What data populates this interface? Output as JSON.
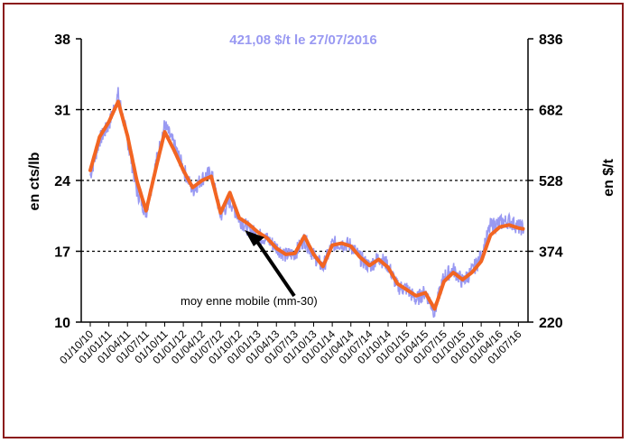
{
  "chart_data": {
    "type": "line",
    "headline": "421,08 $/t  le 27/07/2016",
    "ylabel_left": "en cts/lb",
    "ylabel_right": "en $/t",
    "ylim_left": [
      10,
      38
    ],
    "ylim_right": [
      220,
      836
    ],
    "yticks_left": [
      "10",
      "17",
      "24",
      "31",
      "38"
    ],
    "yticks_right": [
      "220",
      "374",
      "528",
      "682",
      "836"
    ],
    "grid": "horizontal dashed",
    "x_labels": [
      "01/10/10",
      "01/01/11",
      "01/04/11",
      "01/07/11",
      "01/10/11",
      "01/01/12",
      "01/04/12",
      "01/07/12",
      "01/10/12",
      "01/01/13",
      "01/04/13",
      "01/07/13",
      "01/10/13",
      "01/01/14",
      "01/04/14",
      "01/07/14",
      "01/10/14",
      "01/01/15",
      "01/04/15",
      "01/07/15",
      "01/10/15",
      "01/01/16",
      "01/04/16",
      "01/07/16"
    ],
    "annotation": "moy enne mobile (mm-30)",
    "colors": {
      "daily": "#9999f2",
      "moving_average": "#f26522",
      "frame": "#8b1a1a"
    },
    "series": [
      {
        "name": "",
        "x_index": [
          0,
          0.5,
          1,
          1.5,
          2,
          2.5,
          3,
          3.5,
          4,
          4.5,
          5,
          5.5,
          6,
          6.5,
          7,
          7.5,
          8,
          8.5,
          9,
          9.5,
          10,
          10.5,
          11,
          11.5,
          12,
          12.5,
          13,
          13.5,
          14,
          14.5,
          15,
          15.5,
          16,
          16.5,
          17,
          17.5,
          18,
          18.5,
          19,
          19.5,
          20,
          20.5,
          21,
          21.5,
          22,
          22.5,
          23,
          23.3
        ],
        "values": [
          24.5,
          28,
          29.5,
          32.5,
          28,
          23,
          20.8,
          25.5,
          29.5,
          27.5,
          25.2,
          23,
          24.2,
          24.8,
          20.5,
          22,
          20.2,
          19.2,
          18.6,
          18.2,
          17.4,
          16.6,
          16.8,
          18.2,
          16.6,
          15.4,
          17.7,
          17.8,
          17.6,
          16.3,
          15.5,
          16.4,
          15.6,
          13.5,
          13.3,
          12.2,
          13,
          11,
          14.5,
          15.2,
          14,
          15,
          16.5,
          19.5,
          19.8,
          20,
          19.4,
          19.3
        ]
      },
      {
        "name": "moyenne mobile (mm-30)",
        "x_index": [
          0,
          0.5,
          1,
          1.5,
          2,
          2.5,
          3,
          3.5,
          4,
          4.5,
          5,
          5.5,
          6,
          6.5,
          7,
          7.5,
          8,
          8.5,
          9,
          9.5,
          10,
          10.5,
          11,
          11.5,
          12,
          12.5,
          13,
          13.5,
          14,
          14.5,
          15,
          15.5,
          16,
          16.5,
          17,
          17.5,
          18,
          18.5,
          19,
          19.5,
          20,
          20.5,
          21,
          21.5,
          22,
          22.5,
          23,
          23.3
        ],
        "values": [
          25,
          28.3,
          29.8,
          31.8,
          28.4,
          24,
          21,
          25,
          28.8,
          27,
          25,
          23.3,
          24,
          24.4,
          20.8,
          22.8,
          20.3,
          19.7,
          18.9,
          18.3,
          17.3,
          16.7,
          16.8,
          18.5,
          16.7,
          15.5,
          17.6,
          17.8,
          17.5,
          16.4,
          15.6,
          16.2,
          15.4,
          13.8,
          13.2,
          12.6,
          12.9,
          11.3,
          14,
          14.9,
          14.2,
          14.9,
          16,
          18.6,
          19.4,
          19.6,
          19.3,
          19.2
        ]
      }
    ]
  }
}
